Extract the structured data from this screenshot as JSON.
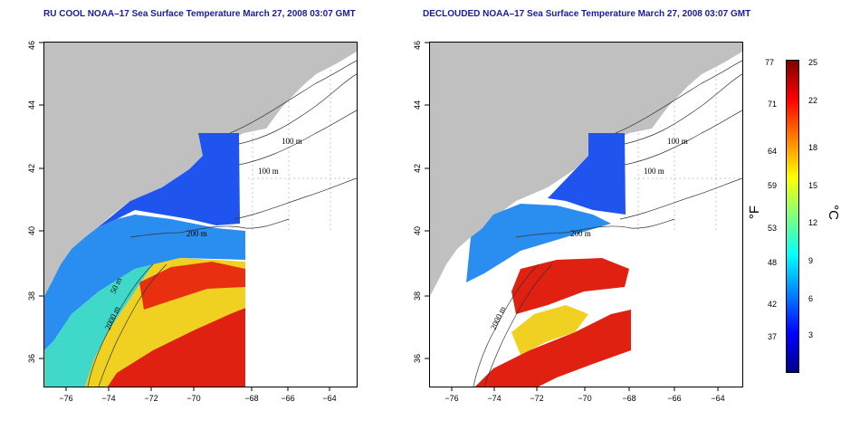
{
  "panels": [
    {
      "title": "RU COOL NOAA–17 Sea Surface Temperature March 27, 2008 03:07 GMT"
    },
    {
      "title": "DECLOUDED NOAA–17 Sea Surface Temperature March 27, 2008 03:07 GMT"
    }
  ],
  "axes": {
    "x_ticks": [
      "−76",
      "−74",
      "−72",
      "−70",
      "−68",
      "−66",
      "−64"
    ],
    "y_ticks": [
      "36",
      "38",
      "40",
      "42",
      "44",
      "46"
    ]
  },
  "contour_labels": [
    "100 m",
    "100 m",
    "200 m",
    "50 m",
    "2000 m"
  ],
  "contour_labels_right": [
    "100 m",
    "100 m",
    "200 m",
    "2000 m"
  ],
  "colorbar": {
    "fahrenheit_ticks": [
      "77",
      "71",
      "64",
      "59",
      "53",
      "48",
      "42",
      "37"
    ],
    "celsius_ticks": [
      "25",
      "22",
      "18",
      "15",
      "12",
      "9",
      "6",
      "3"
    ],
    "fahrenheit_unit": "°F",
    "celsius_unit": "°C",
    "range_c": [
      0,
      25
    ],
    "colors": [
      "#00008b",
      "#0000ff",
      "#0080ff",
      "#00ffff",
      "#80ff80",
      "#ffff00",
      "#ff8000",
      "#ff0000",
      "#800000"
    ]
  },
  "colors": {
    "land": "#c0c0c0",
    "title": "#1a1aa0",
    "grid": "#bbbbbb"
  }
}
